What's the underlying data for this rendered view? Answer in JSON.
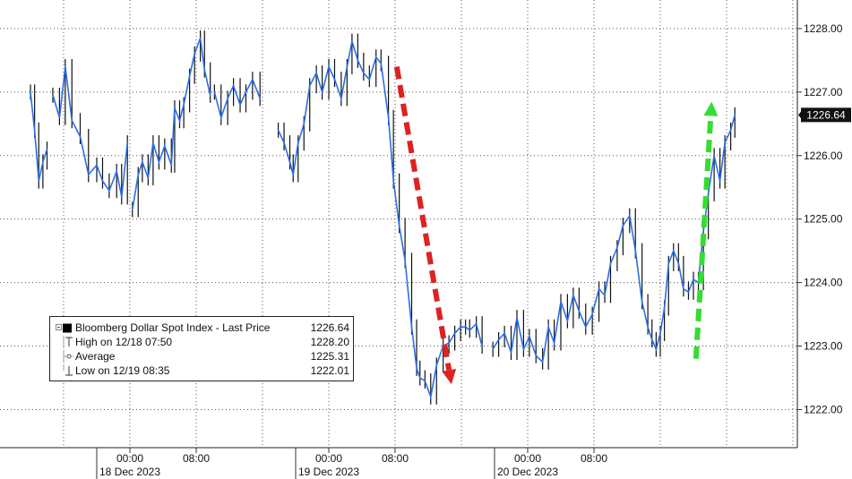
{
  "chart_data": {
    "type": "line",
    "title": "",
    "xlabel": "",
    "ylabel": "",
    "ylim": [
      1221.4,
      1228.45
    ],
    "yticks": [
      1222.0,
      1223.0,
      1224.0,
      1225.0,
      1226.0,
      1227.0,
      1228.0
    ],
    "ytick_labels": [
      "1222.00",
      "1223.00",
      "1224.00",
      "1225.00",
      "1226.00",
      "1227.00",
      "1228.00"
    ],
    "xticks": [
      {
        "label": "00:00",
        "date": "18 Dec 2023"
      },
      {
        "label": "08:00",
        "date": ""
      },
      {
        "label": "00:00",
        "date": "19 Dec 2023"
      },
      {
        "label": "08:00",
        "date": ""
      },
      {
        "label": "00:00",
        "date": "20 Dec 2023"
      },
      {
        "label": "08:00",
        "date": ""
      }
    ],
    "grid": true,
    "last_price_label": "1226.64",
    "series": [
      {
        "name": "Bloomberg Dollar Spot Index - Last Price",
        "color": "#2a6ee8",
        "segments": [
          {
            "x": [
              -12.0,
              -11.5,
              -11.0,
              -10.5,
              -10.0
            ],
            "y": [
              1227.0,
              1226.4,
              1225.6,
              1225.9,
              1226.1
            ]
          },
          {
            "x": [
              -9.3,
              -8.5,
              -7.8,
              -7.0,
              -6.0,
              -5.0,
              -4.0,
              -3.3,
              -2.5,
              -1.6,
              -1.0,
              -0.3
            ],
            "y": [
              1226.95,
              1226.6,
              1227.4,
              1226.55,
              1226.3,
              1225.7,
              1225.85,
              1225.6,
              1225.45,
              1225.75,
              1225.35,
              1226.2
            ]
          },
          {
            "x": [
              0.3,
              1.0,
              1.5,
              2.2,
              2.8,
              3.5,
              4.2,
              5.0,
              5.4,
              6.0,
              6.5,
              7.2,
              7.8,
              8.5,
              9.0,
              9.7
            ],
            "y": [
              1225.15,
              1225.7,
              1225.9,
              1225.65,
              1226.2,
              1225.9,
              1226.15,
              1225.85,
              1226.75,
              1226.55,
              1226.8,
              1227.25,
              1227.6,
              1227.85,
              1227.35,
              1226.95
            ]
          },
          {
            "x": [
              10.2,
              11.0,
              11.8,
              12.5,
              13.3,
              14.0,
              14.8,
              15.7
            ],
            "y": [
              1227.0,
              1226.6,
              1226.9,
              1227.1,
              1226.8,
              1227.0,
              1227.2,
              1226.9
            ]
          },
          {
            "x": [
              17.9,
              18.6,
              19.3,
              19.7,
              20.3,
              21.0,
              21.7,
              22.5,
              23.2,
              24.0,
              24.7,
              25.5,
              26.2,
              26.8,
              27.5,
              28.2,
              28.9,
              29.7,
              30.3,
              31.2,
              31.8,
              32.5,
              33.2,
              34.0,
              34.6,
              35.0,
              35.6,
              36.3,
              37.0,
              37.8,
              38.5,
              39.2,
              39.9,
              40.5,
              41.0,
              41.8,
              42.5
            ],
            "y": [
              1226.4,
              1226.2,
              1225.9,
              1225.7,
              1226.2,
              1226.5,
              1227.1,
              1227.3,
              1227.0,
              1227.4,
              1227.2,
              1226.9,
              1227.4,
              1227.8,
              1227.5,
              1227.3,
              1227.2,
              1227.55,
              1227.45,
              1226.6,
              1225.6,
              1224.9,
              1224.35,
              1223.3,
              1222.65,
              1222.5,
              1222.45,
              1222.2,
              1222.7,
              1223.0,
              1223.05,
              1223.2,
              1223.3,
              1223.3,
              1223.25,
              1223.35,
              1223.0
            ]
          },
          {
            "x": [
              43.8,
              44.5,
              45.2,
              46.0,
              46.7,
              47.5,
              48.2,
              49.0,
              49.8,
              50.5,
              51.2,
              52.0,
              52.8,
              53.5,
              54.2,
              55.0,
              55.8,
              56.6,
              57.3,
              58.0,
              58.8,
              59.5,
              60.3,
              61.0,
              61.8,
              62.5,
              63.0,
              63.5,
              64.0,
              64.5,
              65.0,
              65.6,
              66.2,
              66.8,
              67.4,
              68.0,
              68.6,
              69.2,
              69.8,
              70.5,
              71.2,
              71.8,
              72.5,
              73.0
            ],
            "y": [
              1222.95,
              1223.1,
              1223.2,
              1222.9,
              1223.45,
              1222.95,
              1223.15,
              1222.85,
              1222.75,
              1223.3,
              1223.05,
              1223.7,
              1223.4,
              1223.8,
              1223.55,
              1223.3,
              1223.5,
              1223.9,
              1223.8,
              1224.3,
              1224.55,
              1224.9,
              1225.05,
              1224.5,
              1223.7,
              1223.3,
              1223.1,
              1222.95,
              1223.2,
              1223.6,
              1224.3,
              1224.5,
              1224.3,
              1223.9,
              1223.85,
              1224.05,
              1224.0,
              1224.8,
              1225.4,
              1226.0,
              1225.6,
              1226.2,
              1226.4,
              1226.64
            ]
          }
        ]
      }
    ],
    "annotations": [
      {
        "kind": "arrow",
        "direction": "down",
        "color": "#dd2222",
        "from": {
          "x": 32.2,
          "y": 1227.4
        },
        "to": {
          "x": 38.8,
          "y": 1222.4
        }
      },
      {
        "kind": "arrow",
        "direction": "up",
        "color": "#33dd33",
        "from": {
          "x": 68.3,
          "y": 1222.8
        },
        "to": {
          "x": 70.2,
          "y": 1226.85
        }
      }
    ],
    "legend": {
      "position": "bottom-left",
      "entries": [
        {
          "symbol": "square",
          "label": "Bloomberg Dollar Spot Index - Last Price",
          "value": "1226.64"
        },
        {
          "symbol": "high",
          "label": "High on 12/18 07:50",
          "value": "1228.20"
        },
        {
          "symbol": "average",
          "label": "Average",
          "value": "1225.31"
        },
        {
          "symbol": "low",
          "label": "Low on 12/19 08:35",
          "value": "1222.01"
        }
      ]
    }
  }
}
